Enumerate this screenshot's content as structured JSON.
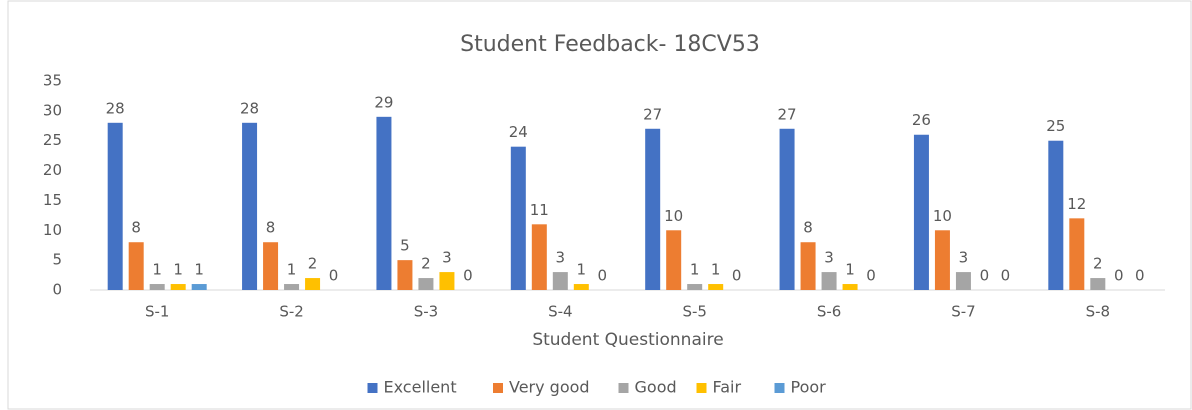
{
  "chart_data": {
    "type": "bar",
    "title": "Student Feedback- 18CV53",
    "x_label": "Student Questionnaire",
    "categories": [
      "S-1",
      "S-2",
      "S-3",
      "S-4",
      "S-5",
      "S-6",
      "S-7",
      "S-8"
    ],
    "series": [
      {
        "name": "Excellent",
        "color": "#4472c4",
        "values": [
          28,
          28,
          29,
          24,
          27,
          27,
          26,
          25
        ]
      },
      {
        "name": "Very good",
        "color": "#ed7d31",
        "values": [
          8,
          8,
          5,
          11,
          10,
          8,
          10,
          12
        ]
      },
      {
        "name": "Good",
        "color": "#a5a5a5",
        "values": [
          1,
          1,
          2,
          3,
          1,
          3,
          3,
          2
        ]
      },
      {
        "name": "Fair",
        "color": "#ffc000",
        "values": [
          1,
          2,
          3,
          1,
          1,
          1,
          0,
          0
        ]
      },
      {
        "name": "Poor",
        "color": "#5b9bd5",
        "values": [
          1,
          0,
          0,
          0,
          0,
          0,
          0,
          0
        ]
      }
    ],
    "ylim": [
      0,
      35
    ],
    "yticks": [
      0,
      5,
      10,
      15,
      20,
      25,
      30,
      35
    ],
    "grid": false,
    "legend": "bottom"
  }
}
